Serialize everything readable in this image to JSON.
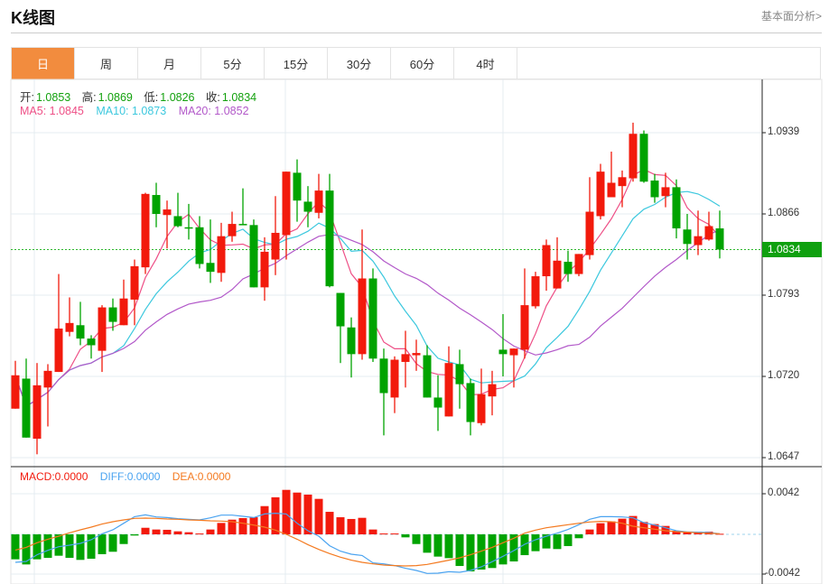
{
  "header": {
    "title": "K线图",
    "link": "基本面分析>"
  },
  "tabs": [
    "日",
    "周",
    "月",
    "5分",
    "15分",
    "30分",
    "60分",
    "4时"
  ],
  "active_tab": 0,
  "colors": {
    "accent": "#f28c3e",
    "up": "#f21a0c",
    "down": "#00a300",
    "ma5": "#ee4f86",
    "ma10": "#3cc8de",
    "ma20": "#b258c9",
    "diff": "#4aa3f0",
    "dea": "#f47a20",
    "macd": "#f21a0c"
  },
  "ohlc_legend": {
    "open_label": "开:",
    "open": "1.0853",
    "high_label": "高:",
    "high": "1.0869",
    "low_label": "低:",
    "low": "1.0826",
    "close_label": "收:",
    "close": "1.0834"
  },
  "ma_legend": {
    "ma5": "MA5: 1.0845",
    "ma10": "MA10: 1.0873",
    "ma20": "MA20: 1.0852"
  },
  "macd_legend": {
    "macd": "MACD:0.0000",
    "diff": "DIFF:0.0000",
    "dea": "DEA:0.0000"
  },
  "current_price": "1.0834",
  "chart_data": [
    {
      "type": "candlestick",
      "title": "K线图",
      "y_ticks": [
        "1.0939",
        "1.0866",
        "1.0793",
        "1.0720",
        "1.0647"
      ],
      "ylim": [
        1.0647,
        1.0939
      ],
      "grid": true,
      "candles": [
        [
          1.0691,
          1.0734,
          1.0691,
          1.0721
        ],
        [
          1.0718,
          1.0736,
          1.0665,
          1.0665
        ],
        [
          1.0664,
          1.0732,
          1.065,
          1.0712
        ],
        [
          1.071,
          1.0731,
          1.0675,
          1.0725
        ],
        [
          1.0724,
          1.0812,
          1.0724,
          1.0763
        ],
        [
          1.076,
          1.0791,
          1.0756,
          1.0768
        ],
        [
          1.0766,
          1.0787,
          1.0748,
          1.0754
        ],
        [
          1.0754,
          1.0757,
          1.0736,
          1.0748
        ],
        [
          1.0743,
          1.0784,
          1.0724,
          1.0782
        ],
        [
          1.0782,
          1.079,
          1.0761,
          1.0769
        ],
        [
          1.0766,
          1.0807,
          1.0766,
          1.079
        ],
        [
          1.0789,
          1.0825,
          1.0766,
          1.0819
        ],
        [
          1.0818,
          1.0885,
          1.0812,
          1.0884
        ],
        [
          1.0883,
          1.0894,
          1.0854,
          1.0866
        ],
        [
          1.0865,
          1.0878,
          1.0835,
          1.087
        ],
        [
          1.0864,
          1.0885,
          1.0854,
          1.0855
        ],
        [
          1.0854,
          1.0875,
          1.0843,
          1.0853
        ],
        [
          1.0854,
          1.0864,
          1.0817,
          1.0821
        ],
        [
          1.0822,
          1.0861,
          1.0804,
          1.0814
        ],
        [
          1.0813,
          1.0858,
          1.0805,
          1.0846
        ],
        [
          1.0846,
          1.0868,
          1.0841,
          1.0857
        ],
        [
          1.0857,
          1.0889,
          1.0856,
          1.0856
        ],
        [
          1.0856,
          1.0861,
          1.08,
          1.08
        ],
        [
          1.08,
          1.0845,
          1.0788,
          1.0832
        ],
        [
          1.0825,
          1.0882,
          1.0811,
          1.0849
        ],
        [
          1.0847,
          1.0904,
          1.0825,
          1.0904
        ],
        [
          1.0903,
          1.0915,
          1.0859,
          1.0878
        ],
        [
          1.0877,
          1.0891,
          1.0854,
          1.0868
        ],
        [
          1.0867,
          1.0902,
          1.0862,
          1.0887
        ],
        [
          1.0887,
          1.0902,
          1.08,
          1.0801
        ],
        [
          1.0795,
          1.0795,
          1.0732,
          1.0765
        ],
        [
          1.0764,
          1.0773,
          1.0719,
          1.074
        ],
        [
          1.074,
          1.0852,
          1.0735,
          1.0808
        ],
        [
          1.0808,
          1.0817,
          1.0733,
          1.0736
        ],
        [
          1.0736,
          1.0745,
          1.0667,
          1.0705
        ],
        [
          1.0701,
          1.0738,
          1.0687,
          1.0735
        ],
        [
          1.0733,
          1.0761,
          1.071,
          1.074
        ],
        [
          1.0739,
          1.0753,
          1.0725,
          1.0741
        ],
        [
          1.0739,
          1.0748,
          1.0701,
          1.0701
        ],
        [
          1.0701,
          1.0721,
          1.0671,
          1.0692
        ],
        [
          1.0684,
          1.0747,
          1.0684,
          1.0732
        ],
        [
          1.0731,
          1.0744,
          1.0691,
          1.0713
        ],
        [
          1.0714,
          1.0718,
          1.0667,
          1.0679
        ],
        [
          1.0678,
          1.0727,
          1.0676,
          1.0704
        ],
        [
          1.0702,
          1.0725,
          1.0685,
          1.0713
        ],
        [
          1.0744,
          1.0776,
          1.072,
          1.074
        ],
        [
          1.0739,
          1.0745,
          1.071,
          1.0745
        ],
        [
          1.0744,
          1.0817,
          1.0736,
          1.0784
        ],
        [
          1.0783,
          1.0814,
          1.0781,
          1.081
        ],
        [
          1.081,
          1.0843,
          1.0797,
          1.0838
        ],
        [
          1.0799,
          1.0845,
          1.0799,
          1.0824
        ],
        [
          1.0823,
          1.0833,
          1.0805,
          1.0812
        ],
        [
          1.0812,
          1.083,
          1.081,
          1.083
        ],
        [
          1.0829,
          1.0899,
          1.0825,
          1.0868
        ],
        [
          1.0864,
          1.0911,
          1.0861,
          1.0904
        ],
        [
          1.0881,
          1.0922,
          1.0881,
          1.0894
        ],
        [
          1.0891,
          1.0905,
          1.0872,
          1.0899
        ],
        [
          1.0898,
          1.0948,
          1.0895,
          1.0938
        ],
        [
          1.0938,
          1.0941,
          1.0894,
          1.0895
        ],
        [
          1.0896,
          1.0902,
          1.0876,
          1.0881
        ],
        [
          1.0882,
          1.0903,
          1.0872,
          1.089
        ],
        [
          1.089,
          1.0897,
          1.0844,
          1.0853
        ],
        [
          1.0852,
          1.0866,
          1.0825,
          1.0839
        ],
        [
          1.0838,
          1.0869,
          1.0829,
          1.0846
        ],
        [
          1.0843,
          1.0868,
          1.0842,
          1.0855
        ],
        [
          1.0853,
          1.0869,
          1.0826,
          1.0834
        ]
      ],
      "moving_averages": [
        5,
        10,
        20
      ]
    },
    {
      "type": "bar+line",
      "title": "MACD",
      "y_ticks": [
        "0.0042",
        "-0.0042"
      ],
      "ylim": [
        -0.0042,
        0.0042
      ],
      "macd": [
        -0.00258,
        -0.00311,
        -0.00258,
        -0.00243,
        -0.00221,
        -0.00243,
        -0.00264,
        -0.00252,
        -0.00205,
        -0.0018,
        -0.001,
        -0.00012,
        0.00068,
        0.0005,
        0.00047,
        0.00031,
        0.00022,
        9e-05,
        0.0005,
        0.00118,
        0.00152,
        0.00168,
        0.00177,
        0.00292,
        0.00383,
        0.0046,
        0.00432,
        0.00411,
        0.00367,
        0.00233,
        0.00177,
        0.00159,
        0.00171,
        0.0005,
        9e-05,
        9e-05,
        -0.00031,
        -0.001,
        -0.0019,
        -0.0023,
        -0.00246,
        -0.00327,
        -0.00383,
        -0.00364,
        -0.00348,
        -0.00311,
        -0.0028,
        -0.00215,
        -0.00174,
        -0.00146,
        -0.00152,
        -0.00121,
        -0.0004,
        0.0005,
        0.00115,
        0.00134,
        0.00162,
        0.0019,
        0.00128,
        0.00106,
        0.00087,
        0.00037,
        0.00022,
        0.00028,
        0.00028,
        6e-05
      ],
      "diff": [
        -0.00289,
        -0.0028,
        -0.00211,
        -0.00165,
        -0.00128,
        -0.00112,
        -0.00093,
        -0.00056,
        6e-05,
        0.00047,
        0.00115,
        0.00183,
        0.00202,
        0.0018,
        0.00174,
        0.00162,
        0.00156,
        0.00149,
        0.00171,
        0.00199,
        0.00199,
        0.00187,
        0.00174,
        0.00211,
        0.00218,
        0.00211,
        0.00115,
        0.00037,
        -0.00019,
        -0.00118,
        -0.00174,
        -0.00205,
        -0.00218,
        -0.00295,
        -0.00305,
        -0.00323,
        -0.00351,
        -0.00373,
        -0.00404,
        -0.00401,
        -0.00386,
        -0.00392,
        -0.00373,
        -0.00336,
        -0.00283,
        -0.00227,
        -0.00168,
        -0.00103,
        -0.00056,
        -0.00019,
        0.00012,
        0.0005,
        0.001,
        0.00156,
        0.00183,
        0.00183,
        0.0018,
        0.00171,
        0.00121,
        0.00096,
        0.00068,
        0.00037,
        0.00025,
        0.00022,
        0.00019,
        6e-05
      ],
      "dea": [
        -0.00162,
        -0.00134,
        -0.00087,
        -0.0005,
        -0.00019,
        0.00016,
        0.00047,
        0.00075,
        0.00106,
        0.00131,
        0.00149,
        0.00165,
        0.00168,
        0.00165,
        0.00159,
        0.00156,
        0.00149,
        0.00146,
        0.0014,
        0.00137,
        0.00131,
        0.00115,
        0.00096,
        0.00075,
        0.00044,
        0.0,
        -0.0005,
        -0.00106,
        -0.00156,
        -0.00199,
        -0.00236,
        -0.00267,
        -0.00289,
        -0.00305,
        -0.00317,
        -0.00323,
        -0.00327,
        -0.00323,
        -0.00311,
        -0.00289,
        -0.00267,
        -0.00243,
        -0.00211,
        -0.00174,
        -0.00134,
        -0.00087,
        -0.0004,
        0.00012,
        0.00044,
        0.00068,
        0.00084,
        0.001,
        0.00115,
        0.00128,
        0.00134,
        0.00131,
        0.00115,
        0.00084,
        0.00068,
        0.00053,
        0.00037,
        0.00028,
        0.00022,
        0.00016,
        0.00012,
        6e-05
      ]
    }
  ]
}
